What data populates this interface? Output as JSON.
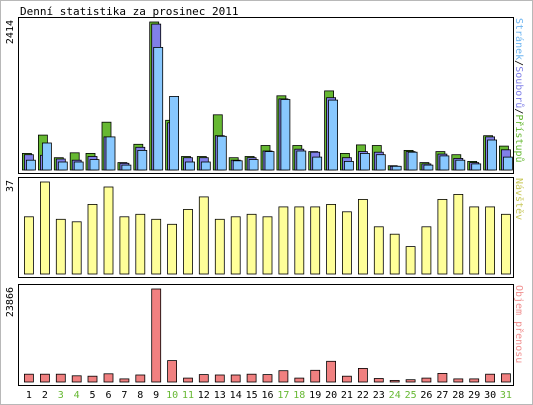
{
  "chart_data": {
    "type": "bar",
    "title": "Denní statistika za prosinec 2011",
    "categories": [
      "1",
      "2",
      "3",
      "4",
      "5",
      "6",
      "7",
      "8",
      "9",
      "10",
      "11",
      "12",
      "13",
      "14",
      "15",
      "16",
      "17",
      "18",
      "19",
      "20",
      "21",
      "22",
      "23",
      "24",
      "25",
      "26",
      "27",
      "28",
      "29",
      "30",
      "31"
    ],
    "weekend_days": [
      "3",
      "4",
      "10",
      "11",
      "17",
      "18",
      "24",
      "25",
      "31"
    ],
    "panels": [
      {
        "name": "top",
        "ymax_label": "2414",
        "legend_parts": [
          {
            "text": "Stránek",
            "color": "#6cb4f0"
          },
          {
            "text": "/",
            "color": "#000000"
          },
          {
            "text": "Souborů",
            "color": "#8080e8"
          },
          {
            "text": "/",
            "color": "#000000"
          },
          {
            "text": "Přístupů",
            "color": "#66b832"
          }
        ],
        "series": [
          {
            "name": "Přístupů",
            "color": "#66b832",
            "values": [
              270,
              570,
              200,
              280,
              270,
              780,
              120,
              420,
              2414,
              810,
              220,
              220,
              900,
              200,
              220,
              400,
              1210,
              400,
              300,
              1290,
              270,
              410,
              400,
              70,
              320,
              120,
              300,
              250,
              140,
              560,
              390
            ]
          },
          {
            "name": "Souborů",
            "color": "#8080e8",
            "values": [
              250,
              240,
              180,
              160,
              220,
              540,
              110,
              370,
              2380,
              770,
              200,
              200,
              560,
              160,
              200,
              310,
              1160,
              340,
              290,
              1180,
              200,
              300,
              290,
              60,
              300,
              100,
              260,
              190,
              120,
              540,
              330
            ]
          },
          {
            "name": "Stránek",
            "color": "#88c8ff",
            "values": [
              160,
              440,
              130,
              130,
              170,
              540,
              80,
              320,
              2000,
              1200,
              130,
              130,
              550,
              150,
              170,
              300,
              1150,
              310,
              210,
              1140,
              140,
              270,
              250,
              60,
              290,
              80,
              230,
              160,
              100,
              490,
              210
            ]
          }
        ]
      },
      {
        "name": "middle",
        "ymax_label": "37",
        "legend_parts": [
          {
            "text": "Návštěv",
            "color": "#c8c85a"
          }
        ],
        "series": [
          {
            "name": "Návštěv",
            "color": "#ffff99",
            "values": [
              23,
              37,
              22,
              21,
              28,
              35,
              23,
              24,
              22,
              20,
              26,
              31,
              22,
              23,
              24,
              23,
              27,
              27,
              27,
              28,
              25,
              30,
              19,
              16,
              11,
              19,
              30,
              32,
              27,
              27,
              24
            ]
          }
        ]
      },
      {
        "name": "bottom",
        "ymax_label": "23866",
        "legend_parts": [
          {
            "text": "Objem přenosu",
            "color": "#f09090"
          }
        ],
        "series": [
          {
            "name": "Objem přenosu",
            "color": "#f08080",
            "values": [
              2000,
              2000,
              2000,
              1600,
              1500,
              2100,
              800,
              1800,
              23866,
              5500,
              1000,
              1900,
              1800,
              1800,
              2000,
              1900,
              2900,
              1000,
              3000,
              5300,
              1500,
              3500,
              900,
              400,
              600,
              1000,
              2200,
              800,
              800,
              2000,
              2100
            ]
          }
        ]
      }
    ],
    "colors": {
      "weekday_label": "#000000",
      "weekend_label": "#66b832",
      "frame": "#000000",
      "border": "#b8b8b8",
      "panel_bg": "#ffffff"
    }
  }
}
